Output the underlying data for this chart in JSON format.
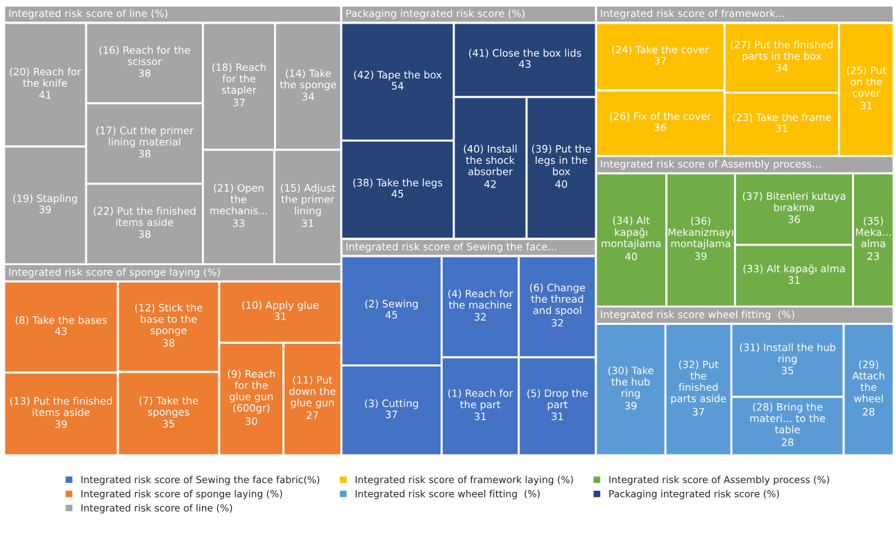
{
  "chart_data": {
    "type": "other",
    "legend": "bottom",
    "annotations": [
      "Integrated risk score of Sewing the face...",
      "Integrated risk score of sponge laying (%)",
      "Integrated risk score of line (%)",
      "Integrated risk score of framework...",
      "Integrated risk score wheel fitting  (%)",
      "Integrated risk score of Assembly process...",
      "Packaging integrated risk score (%)"
    ],
    "categories": [
      "(2) Sewing",
      "(3) Cutting",
      "(4) Reach for the machine",
      "(6) Change the thread and spool",
      "(1) Reach for the part",
      "(5) Drop the part",
      "(8) Take the bases",
      "(13) Put the finished items aside",
      "(12) Stick the base to the sponge",
      "(7) Take the sponges",
      "(10) Apply glue",
      "(9) Reach for the glue gun (600gr)",
      "(11) Put down the glue gun",
      "(20) Reach for the knife",
      "(19) Stapling",
      "(16) Reach for the scissor",
      "(17) Cut the primer lining material",
      "(22) Put the finished items aside",
      "(18) Reach for the stapler",
      "(14) Take the sponge",
      "(21) Open the mechanis...",
      "(15) Adjust the primer lining",
      "(24) Take the cover",
      "(26) Fix of the cover",
      "(27) Put the finished parts in the box",
      "(23) Take the frame",
      "(25) Put on the cover",
      "(30) Take the hub ring",
      "(32) Put the finished parts aside",
      "(31) Install the hub ring",
      "(28) Bring the materi... to the table",
      "(29) Attach the wheel",
      "(34) Alt kapağı montajlama",
      "(36) Mekanizmayı montajlama",
      "(37) Bitenleri kutuya bırakma",
      "(33) Alt kapağı alma",
      "(35) Meka... alma",
      "(42) Tape the box",
      "(38) Take the legs",
      "(41) Close the box lids",
      "(40) Install the shock absorber",
      "(39) Put the legs in the box"
    ],
    "series": [
      {
        "name": "Integrated risk score of Sewing the face fabric(%)",
        "color": "#4472c4",
        "values": [
          45,
          37,
          32,
          32,
          31,
          31,
          null,
          null,
          null,
          null,
          null,
          null,
          null,
          null,
          null,
          null,
          null,
          null,
          null,
          null,
          null,
          null,
          null,
          null,
          null,
          null,
          null,
          null,
          null,
          null,
          null,
          null,
          null,
          null,
          null,
          null,
          null,
          null,
          null,
          null,
          null,
          null
        ],
        "value_labels": [
          "45",
          "37",
          "32",
          "32",
          "31",
          "31",
          null,
          null,
          null,
          null,
          null,
          null,
          null,
          null,
          null,
          null,
          null,
          null,
          null,
          null,
          null,
          null,
          null,
          null,
          null,
          null,
          null,
          null,
          null,
          null,
          null,
          null,
          null,
          null,
          null,
          null,
          null,
          null,
          null,
          null,
          null,
          null
        ]
      },
      {
        "name": "Integrated risk score of sponge laying (%)",
        "color": "#ed7d31",
        "values": [
          null,
          null,
          null,
          null,
          null,
          null,
          43,
          39,
          38,
          35,
          31,
          30,
          27,
          null,
          null,
          null,
          null,
          null,
          null,
          null,
          null,
          null,
          null,
          null,
          null,
          null,
          null,
          null,
          null,
          null,
          null,
          null,
          null,
          null,
          null,
          null,
          null,
          null,
          null,
          null,
          null,
          null
        ],
        "value_labels": [
          null,
          null,
          null,
          null,
          null,
          null,
          "43",
          "39",
          "38",
          "35",
          "31",
          "30",
          "27",
          null,
          null,
          null,
          null,
          null,
          null,
          null,
          null,
          null,
          null,
          null,
          null,
          null,
          null,
          null,
          null,
          null,
          null,
          null,
          null,
          null,
          null,
          null,
          null,
          null,
          null,
          null,
          null,
          null
        ]
      },
      {
        "name": "Integrated risk score of line (%)",
        "color": "#a5a5a5",
        "values": [
          null,
          null,
          null,
          null,
          null,
          null,
          null,
          null,
          null,
          null,
          null,
          null,
          null,
          41,
          39,
          38,
          38,
          38,
          37,
          34,
          33,
          31,
          null,
          null,
          null,
          null,
          null,
          null,
          null,
          null,
          null,
          null,
          null,
          null,
          null,
          null,
          null,
          null,
          null,
          null,
          null,
          null
        ],
        "value_labels": [
          null,
          null,
          null,
          null,
          null,
          null,
          null,
          null,
          null,
          null,
          null,
          null,
          null,
          "41",
          "39",
          "38",
          "38",
          "38",
          "37",
          "34",
          "33",
          "31",
          null,
          null,
          null,
          null,
          null,
          null,
          null,
          null,
          null,
          null,
          null,
          null,
          null,
          null,
          null,
          null,
          null,
          null,
          null,
          null
        ]
      },
      {
        "name": "Integrated risk score of framework laying (%)",
        "color": "#ffc000",
        "values": [
          null,
          null,
          null,
          null,
          null,
          null,
          null,
          null,
          null,
          null,
          null,
          null,
          null,
          null,
          null,
          null,
          null,
          null,
          null,
          null,
          null,
          null,
          37,
          36,
          34,
          31,
          31,
          null,
          null,
          null,
          null,
          null,
          null,
          null,
          null,
          null,
          null,
          null,
          null,
          null,
          null,
          null
        ],
        "value_labels": [
          null,
          null,
          null,
          null,
          null,
          null,
          null,
          null,
          null,
          null,
          null,
          null,
          null,
          null,
          null,
          null,
          null,
          null,
          null,
          null,
          null,
          null,
          "37",
          "36",
          "34",
          "31",
          "31",
          null,
          null,
          null,
          null,
          null,
          null,
          null,
          null,
          null,
          null,
          null,
          null,
          null,
          null,
          null
        ]
      },
      {
        "name": "Integrated risk score wheel fitting  (%)",
        "color": "#5b9bd5",
        "values": [
          null,
          null,
          null,
          null,
          null,
          null,
          null,
          null,
          null,
          null,
          null,
          null,
          null,
          null,
          null,
          null,
          null,
          null,
          null,
          null,
          null,
          null,
          null,
          null,
          null,
          null,
          null,
          39,
          37,
          35,
          28,
          28,
          null,
          null,
          null,
          null,
          null,
          null,
          null,
          null,
          null,
          null
        ],
        "value_labels": [
          null,
          null,
          null,
          null,
          null,
          null,
          null,
          null,
          null,
          null,
          null,
          null,
          null,
          null,
          null,
          null,
          null,
          null,
          null,
          null,
          null,
          null,
          null,
          null,
          null,
          null,
          null,
          "39",
          "37",
          "35",
          "28",
          "28",
          null,
          null,
          null,
          null,
          null,
          null,
          null,
          null,
          null,
          null
        ]
      },
      {
        "name": "Integrated risk score of Assembly process (%)",
        "color": "#70ad47",
        "values": [
          null,
          null,
          null,
          null,
          null,
          null,
          null,
          null,
          null,
          null,
          null,
          null,
          null,
          null,
          null,
          null,
          null,
          null,
          null,
          null,
          null,
          null,
          null,
          null,
          null,
          null,
          null,
          null,
          null,
          null,
          null,
          null,
          40,
          39,
          36,
          31,
          23,
          null,
          null,
          null,
          null,
          null
        ],
        "value_labels": [
          null,
          null,
          null,
          null,
          null,
          null,
          null,
          null,
          null,
          null,
          null,
          null,
          null,
          null,
          null,
          null,
          null,
          null,
          null,
          null,
          null,
          null,
          null,
          null,
          null,
          null,
          null,
          null,
          null,
          null,
          null,
          null,
          "40",
          "39",
          "36",
          "31",
          "23",
          null,
          null,
          null,
          null,
          null
        ]
      },
      {
        "name": "Packaging integrated risk score (%)",
        "color": "#264478",
        "values": [
          null,
          null,
          null,
          null,
          null,
          null,
          null,
          null,
          null,
          null,
          null,
          null,
          null,
          null,
          null,
          null,
          null,
          null,
          null,
          null,
          null,
          null,
          null,
          null,
          null,
          null,
          null,
          null,
          null,
          null,
          null,
          null,
          null,
          null,
          null,
          null,
          null,
          54,
          45,
          43,
          42,
          40
        ],
        "value_labels": [
          null,
          null,
          null,
          null,
          null,
          null,
          null,
          null,
          null,
          null,
          null,
          null,
          null,
          null,
          null,
          null,
          null,
          null,
          null,
          null,
          null,
          null,
          null,
          null,
          null,
          null,
          null,
          null,
          null,
          null,
          null,
          null,
          null,
          null,
          null,
          null,
          null,
          "54",
          "45",
          "43",
          "42",
          "40"
        ]
      }
    ]
  }
}
